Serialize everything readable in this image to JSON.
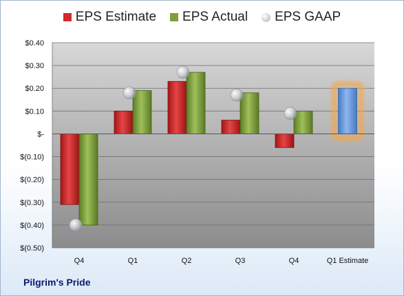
{
  "chart_data": {
    "type": "bar",
    "categories": [
      "Q4",
      "Q1",
      "Q2",
      "Q3",
      "Q4",
      "Q1 Estimate"
    ],
    "series": [
      {
        "name": "EPS Estimate",
        "values": [
          -0.31,
          0.1,
          0.23,
          0.06,
          -0.06,
          null
        ]
      },
      {
        "name": "EPS Actual",
        "values": [
          -0.4,
          0.19,
          0.27,
          0.18,
          0.1,
          0.2
        ]
      },
      {
        "name": "EPS GAAP",
        "values": [
          -0.4,
          0.18,
          0.27,
          0.17,
          0.09,
          null
        ]
      }
    ],
    "estimate_bar_index": 5,
    "ylim": [
      -0.5,
      0.4
    ],
    "yticks": [
      0.4,
      0.3,
      0.2,
      0.1,
      0,
      -0.1,
      -0.2,
      -0.3,
      -0.4,
      -0.5
    ],
    "ytick_labels": [
      "$0.40",
      "$0.30",
      "$0.20",
      "$0.10",
      "$-",
      "$(0.10)",
      "$(0.20)",
      "$(0.30)",
      "$(0.40)",
      "$(0.50)"
    ],
    "legend_position": "top-center",
    "colors": {
      "estimate": "#d42a2a",
      "actual": "#7ea03c",
      "gaap": "#b8bcc4",
      "forecast": "#6f9ee0",
      "forecast_glow": "#f5a64a"
    }
  },
  "legend": {
    "estimate": "EPS Estimate",
    "actual": "EPS Actual",
    "gaap": "EPS GAAP"
  },
  "company": "Pilgrim's Pride"
}
